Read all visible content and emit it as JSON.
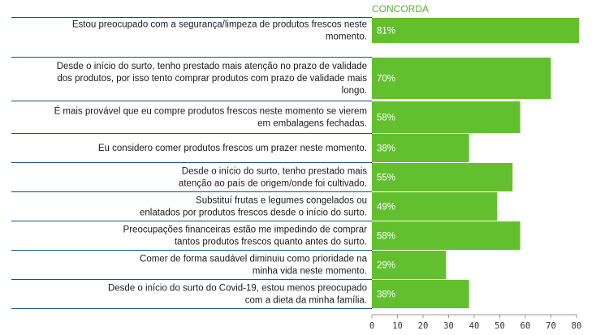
{
  "chart_data": {
    "type": "bar",
    "orientation": "horizontal",
    "header": "CONCORDA",
    "bar_color": "#62c02e",
    "separator_color": "#1f4e79",
    "categories": [
      [
        "Estou preocupado com a segurança/limpeza de produtos frescos neste",
        "momento."
      ],
      [
        "Desde o início do surto, tenho prestado mais atenção no prazo de validade",
        "dos produtos, por isso tento comprar produtos com prazo de validade mais",
        "longo."
      ],
      [
        "É mais provável que eu compre produtos frescos neste momento se vierem",
        "em embalagens fechadas."
      ],
      [
        "Eu considero comer produtos frescos um prazer neste momento."
      ],
      [
        "Desde o início do surto, tenho prestado mais",
        "atenção ao país de origem/onde foi cultivado."
      ],
      [
        "Substituí frutas e legumes congelados ou",
        "enlatados por produtos frescos desde o início do surto."
      ],
      [
        "Preocupações financeiras estão me impedindo de comprar",
        "tantos produtos frescos quanto antes do surto."
      ],
      [
        "Comer de forma saudável diminuiu como prioridade na",
        "minha vida neste momento."
      ],
      [
        "Desde o início do surto do Covid-19, estou menos preocupado",
        "com a dieta da minha família."
      ]
    ],
    "values": [
      81,
      70,
      58,
      38,
      55,
      49,
      58,
      29,
      38
    ],
    "value_labels": [
      "81%",
      "70%",
      "58%",
      "38%",
      "55%",
      "49%",
      "58%",
      "29%",
      "38%"
    ],
    "xlim": [
      0,
      80
    ],
    "xticks": [
      0,
      10,
      20,
      30,
      40,
      50,
      60,
      70,
      80
    ]
  }
}
